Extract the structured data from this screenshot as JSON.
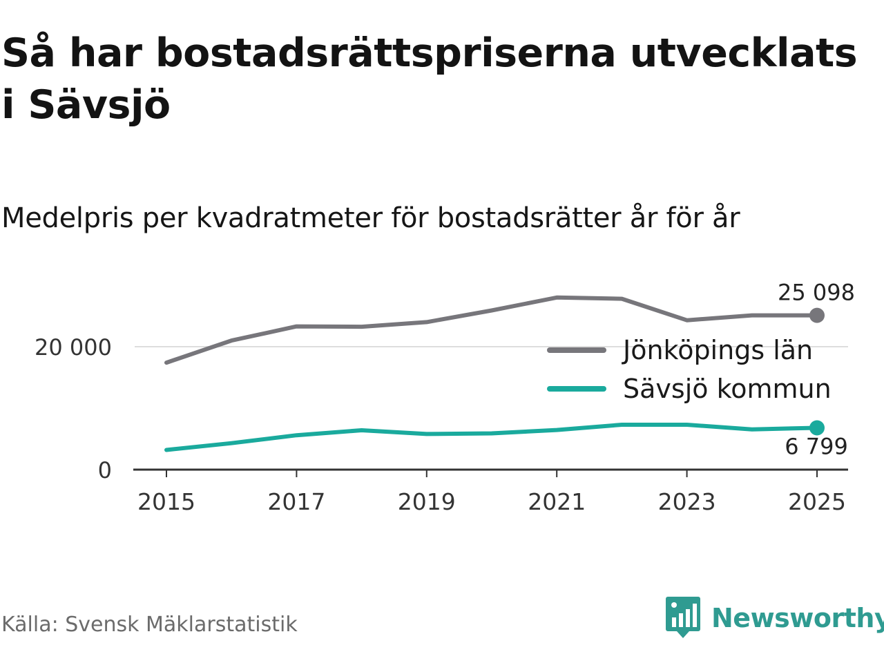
{
  "title": "Så har bostadsrättspriserna utvecklats i Sävsjö",
  "subtitle": "Medelpris per kvadratmeter för bostadsrätter år för år",
  "source": "Källa: Svensk Mäklarstatistik",
  "brand": {
    "name": "Newsworthy",
    "logo_icon": "chart-bubble-icon",
    "color": "#2f9b91"
  },
  "chart_data": {
    "type": "line",
    "x": [
      2015,
      2016,
      2017,
      2018,
      2019,
      2020,
      2021,
      2022,
      2023,
      2024,
      2025
    ],
    "xticks": [
      "2015",
      "2017",
      "2019",
      "2021",
      "2023",
      "2025"
    ],
    "xlim": [
      2015,
      2025
    ],
    "ylim": [
      0,
      30000
    ],
    "yticks": [
      {
        "value": 0,
        "label": "0"
      },
      {
        "value": 20000,
        "label": "20 000"
      }
    ],
    "grid": true,
    "legend_position": "right",
    "series": [
      {
        "name": "Jönköpings län",
        "color": "#77767b",
        "values": [
          17400,
          21000,
          23300,
          23250,
          24000,
          25900,
          28000,
          27800,
          24300,
          25100,
          25098
        ],
        "end_label": "25 098"
      },
      {
        "name": "Sävsjö kommun",
        "color": "#1aaa9d",
        "values": [
          3200,
          4300,
          5600,
          6400,
          5800,
          5900,
          6450,
          7300,
          7300,
          6550,
          6799
        ],
        "end_label": "6 799"
      }
    ]
  }
}
